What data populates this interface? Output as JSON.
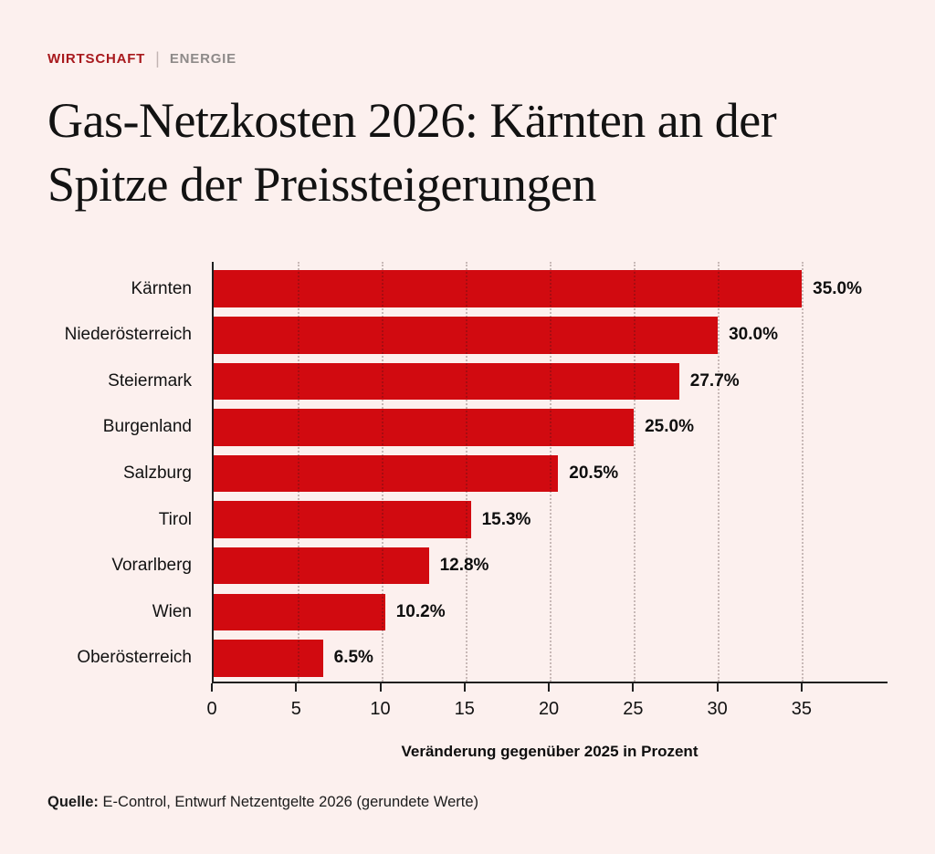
{
  "header": {
    "kicker_primary": "WIRTSCHAFT",
    "kicker_separator": "|",
    "kicker_secondary": "ENERGIE",
    "title": "Gas-Netzkosten 2026: Kärnten an der Spitze der Preissteigerungen"
  },
  "chart_data": {
    "type": "bar",
    "orientation": "horizontal",
    "categories": [
      "Kärnten",
      "Niederösterreich",
      "Steiermark",
      "Burgenland",
      "Salzburg",
      "Tirol",
      "Vorarlberg",
      "Wien",
      "Oberösterreich"
    ],
    "values": [
      35.0,
      30.0,
      27.7,
      25.0,
      20.5,
      15.3,
      12.8,
      10.2,
      6.5
    ],
    "value_labels": [
      "35.0%",
      "30.0%",
      "27.7%",
      "25.0%",
      "20.5%",
      "15.3%",
      "12.8%",
      "10.2%",
      "6.5%"
    ],
    "title": "",
    "xlabel": "Veränderung gegenüber 2025 in Prozent",
    "ylabel": "",
    "xlim": [
      0,
      40
    ],
    "xticks": [
      0,
      5,
      10,
      15,
      20,
      25,
      30,
      35
    ],
    "grid": "vertical-dotted",
    "legend": "none",
    "bar_color": "#d10a10"
  },
  "footer": {
    "source_label": "Quelle:",
    "source_text": "E-Control, Entwurf Netzentgelte 2026 (gerundete Werte)"
  },
  "colors": {
    "background": "#fcf0ee",
    "bar": "#d10a10",
    "kicker_primary": "#a8191d",
    "kicker_secondary": "#8e8a89",
    "text": "#121212",
    "axis": "#1f1f1f"
  }
}
